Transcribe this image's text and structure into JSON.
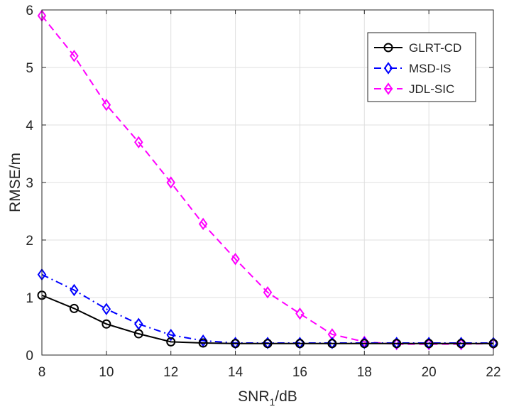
{
  "chart_data": {
    "type": "line",
    "title": "",
    "xlabel_main": "SNR",
    "xlabel_sub": "1",
    "xlabel_suffix": "/dB",
    "ylabel": "RMSE/m",
    "xlim": [
      8,
      22
    ],
    "ylim": [
      0,
      6
    ],
    "x_ticks": [
      8,
      10,
      12,
      14,
      16,
      18,
      20,
      22
    ],
    "y_ticks": [
      0,
      1,
      2,
      3,
      4,
      5,
      6
    ],
    "grid": true,
    "legend_position": "top-right",
    "x": [
      8,
      9,
      10,
      11,
      12,
      13,
      14,
      15,
      16,
      17,
      18,
      19,
      20,
      21,
      22
    ],
    "series": [
      {
        "name": "GLRT-CD",
        "color": "#000000",
        "line_style": "solid",
        "marker": "circle",
        "values": [
          1.04,
          0.81,
          0.54,
          0.37,
          0.23,
          0.21,
          0.2,
          0.2,
          0.2,
          0.2,
          0.2,
          0.2,
          0.2,
          0.2,
          0.2
        ]
      },
      {
        "name": "MSD-IS",
        "color": "#0000ff",
        "line_style": "dash-dot",
        "marker": "diamond",
        "values": [
          1.4,
          1.13,
          0.8,
          0.54,
          0.35,
          0.25,
          0.21,
          0.21,
          0.21,
          0.21,
          0.21,
          0.21,
          0.21,
          0.21,
          0.21
        ]
      },
      {
        "name": "JDL-SIC",
        "color": "#ff00ff",
        "line_style": "dashed",
        "marker": "diamond",
        "values": [
          5.9,
          5.2,
          4.35,
          3.7,
          3.0,
          2.28,
          1.67,
          1.09,
          0.72,
          0.36,
          0.23,
          0.19,
          0.19,
          0.19,
          0.2
        ]
      }
    ]
  }
}
